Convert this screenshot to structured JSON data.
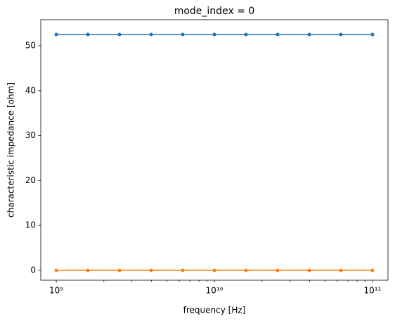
{
  "chart_data": {
    "type": "line",
    "title": "mode_index = 0",
    "xlabel": "frequency [Hz]",
    "ylabel": "characteristic impedance [ohm]",
    "xscale": "log",
    "grid": false,
    "x": [
      1000000000,
      1585000000,
      2512000000,
      3981000000,
      6310000000,
      10000000000,
      15850000000,
      25120000000,
      39810000000,
      63100000000,
      100000000000
    ],
    "series": [
      {
        "color": "#1f77b4",
        "values": [
          52.5,
          52.5,
          52.5,
          52.5,
          52.5,
          52.5,
          52.5,
          52.5,
          52.5,
          52.5,
          52.5
        ]
      },
      {
        "color": "#ff7f0e",
        "values": [
          0,
          0,
          0,
          0,
          0,
          0,
          0,
          0,
          0,
          0,
          0
        ]
      }
    ],
    "xlim": [
      798000000,
      125300000000
    ],
    "xticks": [
      {
        "value": 1000000000,
        "label": "10⁹"
      },
      {
        "value": 10000000000,
        "label": "10¹⁰"
      },
      {
        "value": 100000000000,
        "label": "10¹¹"
      }
    ],
    "xminorticks": [
      2000000000,
      3000000000,
      4000000000,
      5000000000,
      6000000000,
      7000000000,
      8000000000,
      9000000000,
      20000000000,
      30000000000,
      40000000000,
      50000000000,
      60000000000,
      70000000000,
      80000000000,
      90000000000
    ],
    "ylim": [
      -2.2,
      55.8
    ],
    "yticks": [
      0,
      10,
      20,
      30,
      40,
      50
    ]
  }
}
